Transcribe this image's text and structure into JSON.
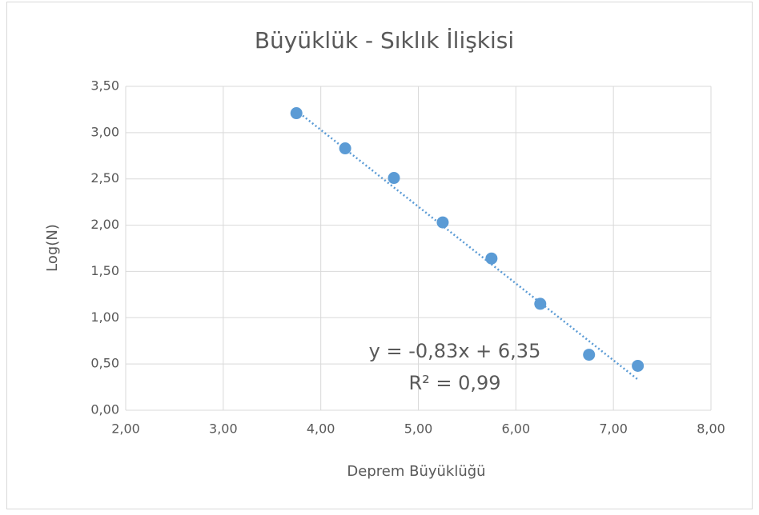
{
  "chart_data": {
    "type": "scatter",
    "title": "Büyüklük - Sıklık İlişkisi",
    "xlabel": "Deprem Büyüklüğü",
    "ylabel": "Log(N)",
    "series": [
      {
        "color": "#5b9bd5",
        "x": [
          3.75,
          4.25,
          4.75,
          5.25,
          5.75,
          6.25,
          6.75,
          7.25
        ],
        "values": [
          3.21,
          2.83,
          2.51,
          2.03,
          1.64,
          1.15,
          0.6,
          0.48
        ]
      }
    ],
    "trendline": {
      "slope": -0.83,
      "intercept": 6.35,
      "color": "#5b9bd5",
      "equation": "y = -0,83x + 6,35",
      "r2": "R² = 0,99"
    },
    "xlim": [
      2,
      8
    ],
    "xticks": [
      {
        "value": 2,
        "label": "2,00"
      },
      {
        "value": 3,
        "label": "3,00"
      },
      {
        "value": 4,
        "label": "4,00"
      },
      {
        "value": 5,
        "label": "5,00"
      },
      {
        "value": 6,
        "label": "6,00"
      },
      {
        "value": 7,
        "label": "7,00"
      },
      {
        "value": 8,
        "label": "8,00"
      }
    ],
    "ylim": [
      0,
      3.5
    ],
    "yticks": [
      {
        "value": 0,
        "label": "0,00"
      },
      {
        "value": 0.5,
        "label": "0,50"
      },
      {
        "value": 1,
        "label": "1,00"
      },
      {
        "value": 1.5,
        "label": "1,50"
      },
      {
        "value": 2,
        "label": "2,00"
      },
      {
        "value": 2.5,
        "label": "2,50"
      },
      {
        "value": 3,
        "label": "3,00"
      },
      {
        "value": 3.5,
        "label": "3,50"
      }
    ],
    "grid": true
  }
}
